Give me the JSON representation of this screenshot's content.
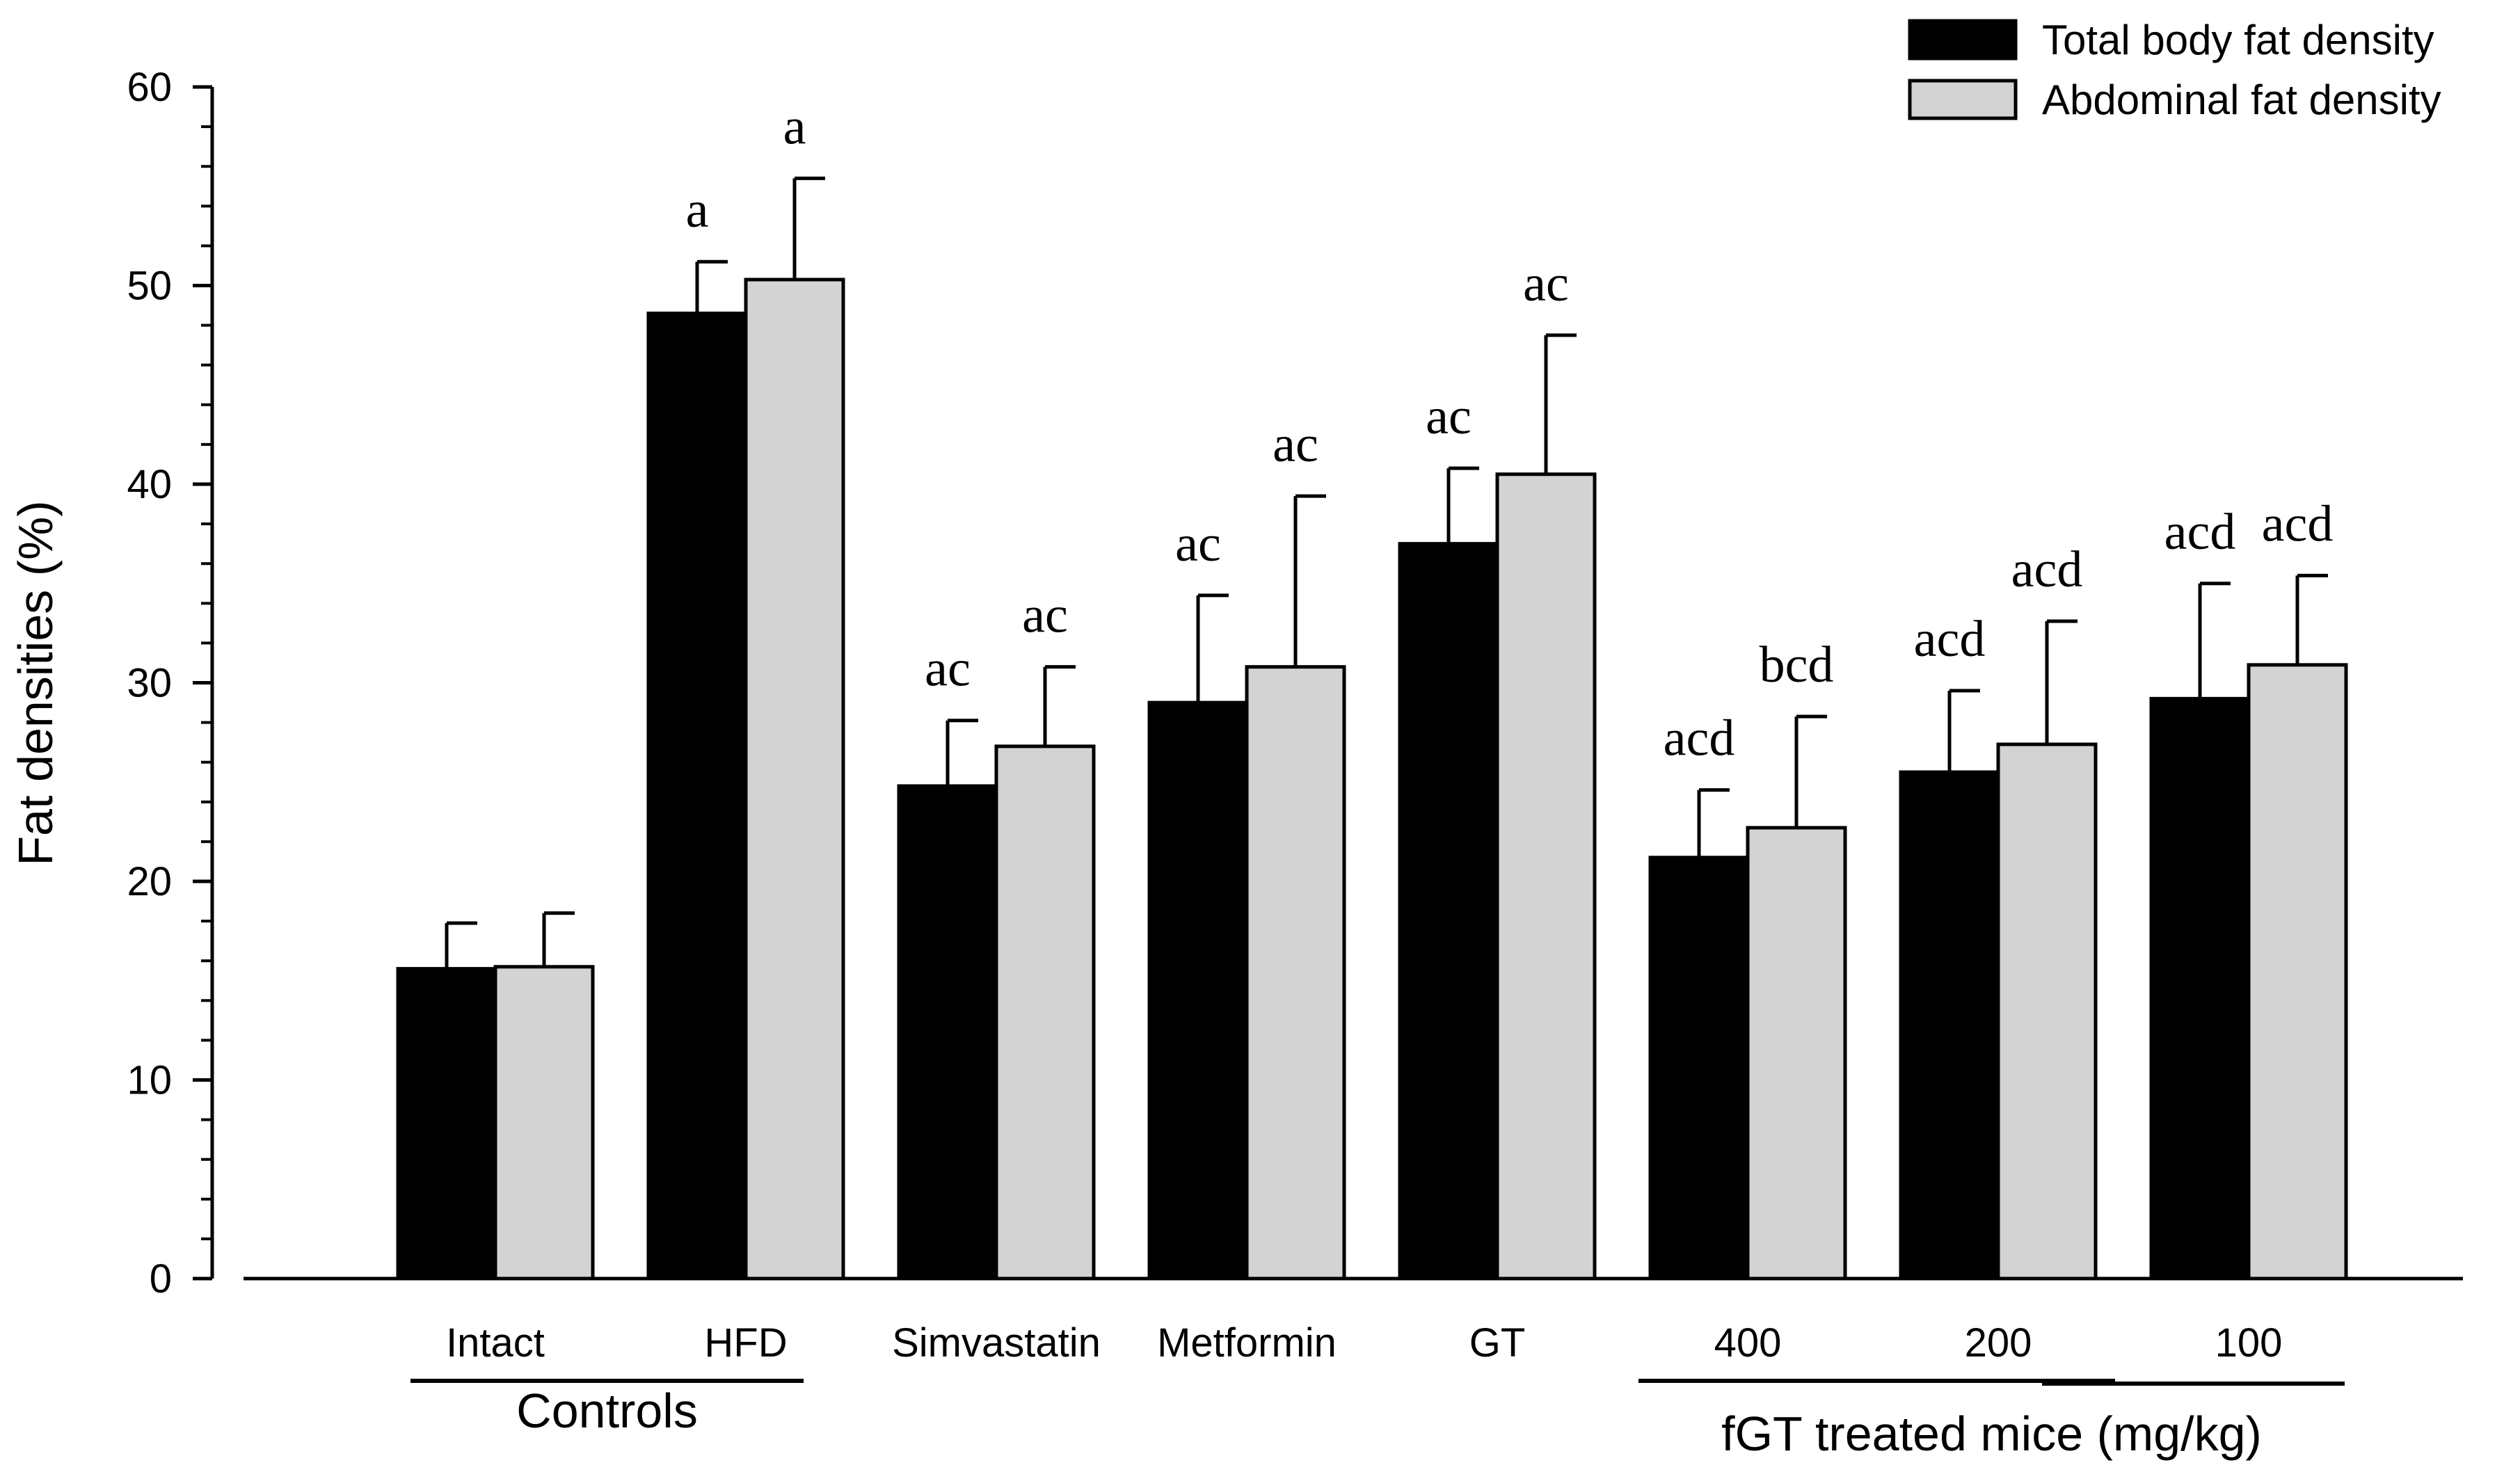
{
  "chart_data": {
    "type": "bar",
    "title": "",
    "xlabel": "",
    "ylabel": "Fat densities (%)",
    "ylim": [
      0,
      60
    ],
    "yticks": [
      "0",
      "10",
      "20",
      "30",
      "40",
      "50",
      "60"
    ],
    "grid": false,
    "legend_position": "top-right",
    "categories": [
      "Intact",
      "HFD",
      "Simvastatin",
      "Metformin",
      "GT",
      "400",
      "200",
      "100"
    ],
    "series": [
      {
        "name": "Total body fat density",
        "color": "#000000",
        "values": [
          15.6,
          48.6,
          24.8,
          29.0,
          37.0,
          21.2,
          25.5,
          29.2
        ],
        "errors": [
          2.3,
          2.6,
          3.3,
          5.4,
          3.8,
          3.4,
          4.1,
          5.8
        ],
        "labels": [
          "",
          "a",
          "ac",
          "ac",
          "ac",
          "acd",
          "acd",
          "acd"
        ]
      },
      {
        "name": "Abdominal fat density",
        "color": "#d3d3d3",
        "values": [
          15.7,
          50.3,
          26.8,
          30.8,
          40.5,
          22.7,
          26.9,
          30.9
        ],
        "errors": [
          2.7,
          5.1,
          4.0,
          8.6,
          7.0,
          5.6,
          6.2,
          4.5
        ],
        "labels": [
          "",
          "a",
          "ac",
          "ac",
          "ac",
          "bcd",
          "acd",
          "acd"
        ]
      }
    ],
    "group_labels": [
      {
        "label": "Controls",
        "from": "Intact",
        "to": "HFD"
      },
      {
        "label": "fGT treated mice (mg/kg)",
        "from": "400",
        "to": "100"
      }
    ]
  }
}
